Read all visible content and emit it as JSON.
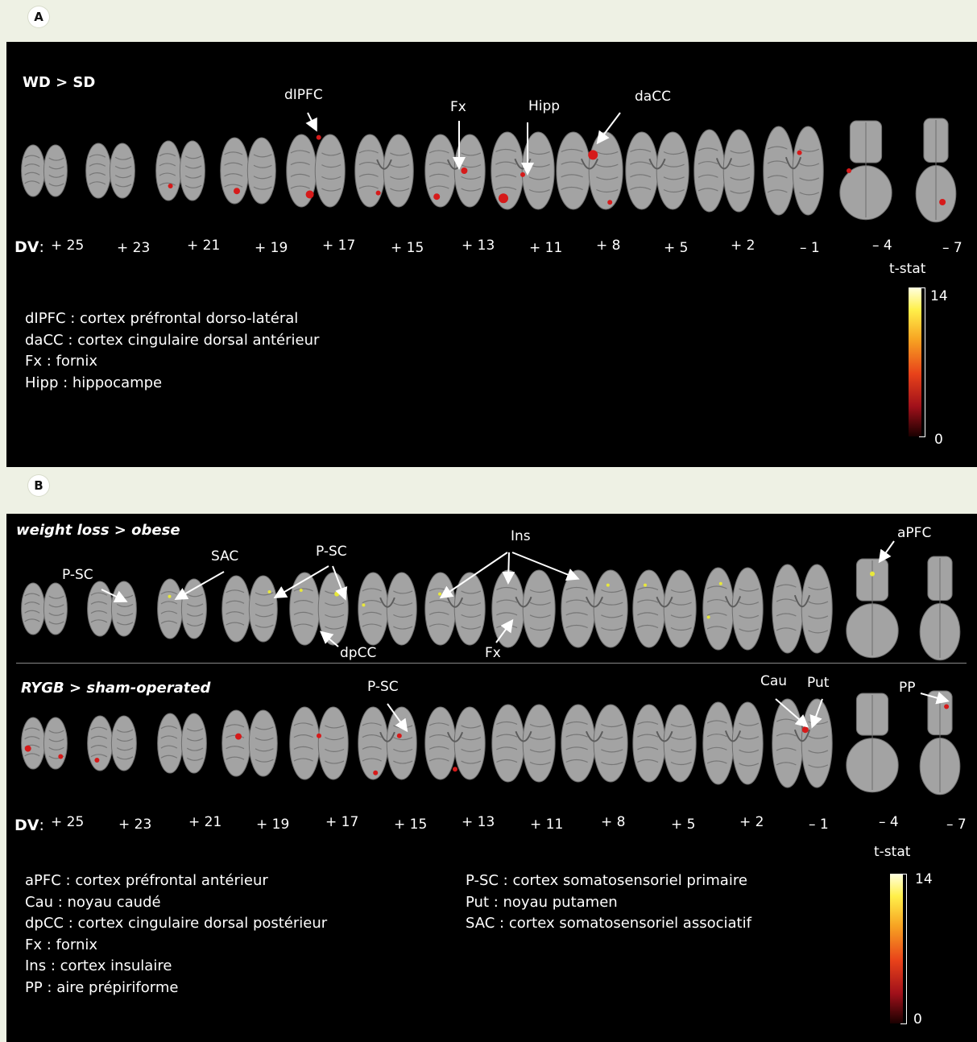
{
  "panelA": {
    "badge": "A",
    "condition": "WD > SD",
    "annotations": [
      "dIPFC",
      "Fx",
      "Hipp",
      "daCC"
    ],
    "dv_header": "DV",
    "dv_sep": ":",
    "dv_values": [
      "+ 25",
      "+ 23",
      "+ 21",
      "+ 19",
      "+ 17",
      "+ 15",
      "+ 13",
      "+ 11",
      "+ 8",
      "+ 5",
      "+ 2",
      "– 1",
      "– 4",
      "– 7"
    ],
    "legend": [
      "dIPFC : cortex préfrontal dorso-latéral",
      "daCC : cortex cingulaire dorsal antérieur",
      "Fx : fornix",
      "Hipp : hippocampe"
    ],
    "colorbar": {
      "title": "t-stat",
      "max": "14",
      "min": "0"
    }
  },
  "panelB": {
    "badge": "B",
    "row1_condition": "weight loss > obese",
    "row1_annotations": [
      "P-SC",
      "SAC",
      "P-SC",
      "Ins",
      "aPFC",
      "dpCC",
      "Fx"
    ],
    "row2_condition": "RYGB > sham-operated",
    "row2_annotations": [
      "P-SC",
      "Cau",
      "Put",
      "PP"
    ],
    "dv_header": "DV",
    "dv_sep": ":",
    "dv_values": [
      "+ 25",
      "+ 23",
      "+ 21",
      "+ 19",
      "+ 17",
      "+ 15",
      "+ 13",
      "+ 11",
      "+ 8",
      "+ 5",
      "+ 2",
      "– 1",
      "– 4",
      "– 7"
    ],
    "legend_left": [
      "aPFC : cortex préfrontal antérieur",
      "Cau : noyau caudé",
      "dpCC : cortex cingulaire dorsal postérieur",
      "Fx : fornix",
      "Ins : cortex insulaire",
      "PP : aire prépiriforme"
    ],
    "legend_right": [
      "P-SC : cortex somatosensoriel primaire",
      "Put : noyau putamen",
      "SAC : cortex somatosensoriel associatif"
    ],
    "colorbar": {
      "title": "t-stat",
      "max": "14",
      "min": "0"
    }
  },
  "colors": {
    "page_bg": "#eef1e4",
    "panel_bg": "#000000",
    "activation_red": "#d61a1a",
    "activation_yellow": "#e8e83a",
    "tissue_gray": "#a3a3a3"
  }
}
